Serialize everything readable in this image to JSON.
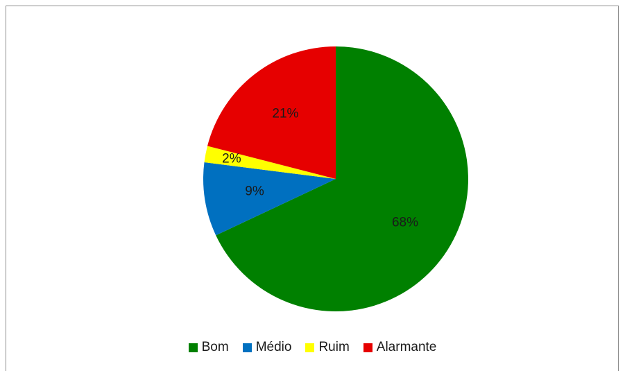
{
  "chart_data": {
    "type": "pie",
    "categories": [
      "Bom",
      "Médio",
      "Ruim",
      "Alarmante"
    ],
    "values": [
      68,
      9,
      2,
      21
    ],
    "data_labels": [
      "68%",
      "9%",
      "2%",
      "21%"
    ],
    "colors": [
      "#008000",
      "#0070C0",
      "#FFFF00",
      "#E60000"
    ],
    "start_angle_deg": 0,
    "direction": "clockwise",
    "legend_position": "bottom",
    "title": ""
  },
  "legend": {
    "items": [
      {
        "label": "Bom",
        "color": "#008000"
      },
      {
        "label": "Médio",
        "color": "#0070C0"
      },
      {
        "label": "Ruim",
        "color": "#FFFF00"
      },
      {
        "label": "Alarmante",
        "color": "#E60000"
      }
    ]
  }
}
